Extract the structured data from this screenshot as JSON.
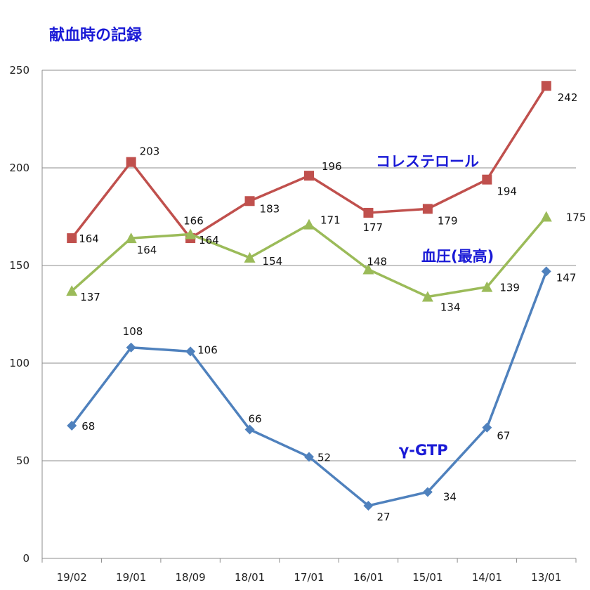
{
  "chart_data": {
    "type": "line",
    "title": "献血時の記録",
    "xlabel": "",
    "ylabel": "",
    "ylim": [
      0,
      250
    ],
    "yticks": [
      0,
      50,
      100,
      150,
      200,
      250
    ],
    "grid": true,
    "legend": "inline labels",
    "categories": [
      "19/02",
      "19/01",
      "18/09",
      "18/01",
      "17/01",
      "16/01",
      "15/01",
      "14/01",
      "13/01"
    ],
    "series": [
      {
        "name": "コレステロール",
        "color": "#c0504d",
        "marker": "square",
        "values": [
          164,
          203,
          164,
          183,
          196,
          177,
          179,
          194,
          242
        ]
      },
      {
        "name": "血圧(最高)",
        "color": "#9bbb59",
        "marker": "triangle",
        "values": [
          137,
          164,
          166,
          154,
          171,
          148,
          134,
          139,
          175
        ]
      },
      {
        "name": "γ-GTP",
        "color": "#4f81bd",
        "marker": "diamond",
        "values": [
          68,
          108,
          106,
          66,
          52,
          27,
          34,
          67,
          147
        ]
      }
    ]
  }
}
